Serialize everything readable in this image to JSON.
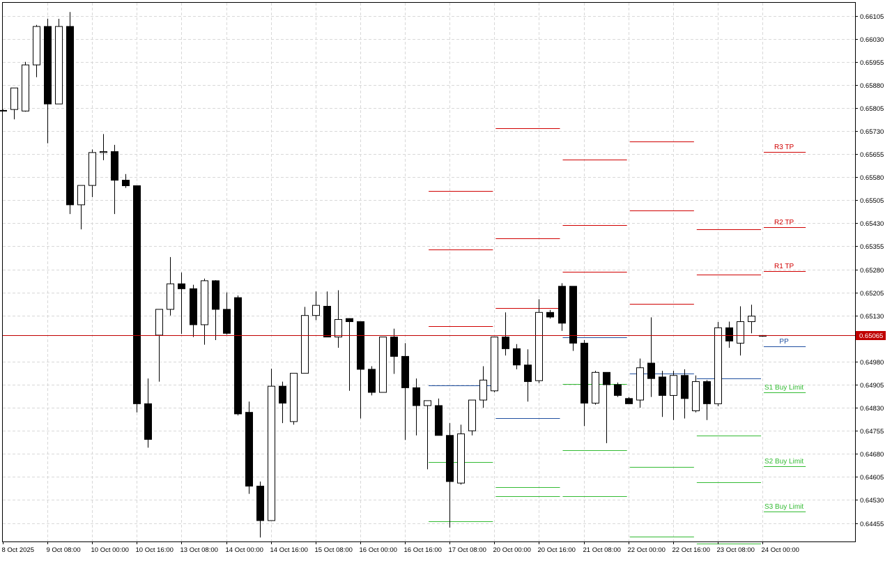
{
  "chart_data": {
    "type": "candlestick",
    "y_ticks": [
      "0.66105",
      "0.66030",
      "0.65955",
      "0.65880",
      "0.65805",
      "0.65730",
      "0.65655",
      "0.65580",
      "0.65505",
      "0.65430",
      "0.65355",
      "0.65280",
      "0.65205",
      "0.65130",
      "0.64980",
      "0.64905",
      "0.64830",
      "0.64755",
      "0.64680",
      "0.64605",
      "0.64530",
      "0.64455"
    ],
    "ylim": [
      0.64395,
      0.66147
    ],
    "x_labels": [
      {
        "i": 0,
        "text": "8 Oct 2025"
      },
      {
        "i": 4,
        "text": "9 Oct 08:00"
      },
      {
        "i": 8,
        "text": "10 Oct 00:00"
      },
      {
        "i": 12,
        "text": "10 Oct 16:00"
      },
      {
        "i": 16,
        "text": "13 Oct 08:00"
      },
      {
        "i": 20,
        "text": "14 Oct 00:00"
      },
      {
        "i": 24,
        "text": "14 Oct 16:00"
      },
      {
        "i": 28,
        "text": "15 Oct 08:00"
      },
      {
        "i": 32,
        "text": "16 Oct 00:00"
      },
      {
        "i": 36,
        "text": "16 Oct 16:00"
      },
      {
        "i": 40,
        "text": "17 Oct 08:00"
      },
      {
        "i": 44,
        "text": "20 Oct 00:00"
      },
      {
        "i": 48,
        "text": "20 Oct 16:00"
      },
      {
        "i": 52,
        "text": "21 Oct 08:00"
      },
      {
        "i": 56,
        "text": "22 Oct 00:00"
      },
      {
        "i": 60,
        "text": "22 Oct 16:00"
      },
      {
        "i": 64,
        "text": "23 Oct 08:00"
      },
      {
        "i": 68,
        "text": "24 Oct 00:00"
      }
    ],
    "candles": [
      {
        "o": 0.65797,
        "h": 0.658,
        "l": 0.65795,
        "c": 0.65795
      },
      {
        "o": 0.658,
        "h": 0.65865,
        "l": 0.65768,
        "c": 0.6587
      },
      {
        "o": 0.65795,
        "h": 0.65955,
        "l": 0.65793,
        "c": 0.65945
      },
      {
        "o": 0.65945,
        "h": 0.66075,
        "l": 0.65905,
        "c": 0.6607
      },
      {
        "o": 0.6607,
        "h": 0.66095,
        "l": 0.6569,
        "c": 0.65818
      },
      {
        "o": 0.65818,
        "h": 0.66095,
        "l": 0.65818,
        "c": 0.6607
      },
      {
        "o": 0.6607,
        "h": 0.66117,
        "l": 0.6546,
        "c": 0.6549
      },
      {
        "o": 0.6549,
        "h": 0.65542,
        "l": 0.6541,
        "c": 0.65553
      },
      {
        "o": 0.65553,
        "h": 0.6567,
        "l": 0.65515,
        "c": 0.6566
      },
      {
        "o": 0.6566,
        "h": 0.6572,
        "l": 0.65635,
        "c": 0.65663
      },
      {
        "o": 0.65663,
        "h": 0.65685,
        "l": 0.6546,
        "c": 0.6557
      },
      {
        "o": 0.6557,
        "h": 0.6559,
        "l": 0.65545,
        "c": 0.65552
      },
      {
        "o": 0.65552,
        "h": 0.65552,
        "l": 0.64815,
        "c": 0.64843
      },
      {
        "o": 0.64843,
        "h": 0.64925,
        "l": 0.647,
        "c": 0.64727
      },
      {
        "o": 0.65066,
        "h": 0.65143,
        "l": 0.64915,
        "c": 0.6515
      },
      {
        "o": 0.6515,
        "h": 0.6532,
        "l": 0.6513,
        "c": 0.65233
      },
      {
        "o": 0.65233,
        "h": 0.6527,
        "l": 0.6507,
        "c": 0.65217
      },
      {
        "o": 0.65217,
        "h": 0.6523,
        "l": 0.6506,
        "c": 0.651
      },
      {
        "o": 0.651,
        "h": 0.6525,
        "l": 0.65035,
        "c": 0.65243
      },
      {
        "o": 0.65243,
        "h": 0.65245,
        "l": 0.6505,
        "c": 0.6515
      },
      {
        "o": 0.6515,
        "h": 0.65205,
        "l": 0.65068,
        "c": 0.65072
      },
      {
        "o": 0.65188,
        "h": 0.65195,
        "l": 0.64805,
        "c": 0.6481
      },
      {
        "o": 0.64815,
        "h": 0.6485,
        "l": 0.6455,
        "c": 0.64575
      },
      {
        "o": 0.64575,
        "h": 0.6459,
        "l": 0.64408,
        "c": 0.64463
      },
      {
        "o": 0.64463,
        "h": 0.64957,
        "l": 0.64463,
        "c": 0.649
      },
      {
        "o": 0.649,
        "h": 0.64915,
        "l": 0.6478,
        "c": 0.64845
      },
      {
        "o": 0.64785,
        "h": 0.6493,
        "l": 0.64775,
        "c": 0.64942
      },
      {
        "o": 0.64942,
        "h": 0.65158,
        "l": 0.64942,
        "c": 0.6513
      },
      {
        "o": 0.6513,
        "h": 0.65208,
        "l": 0.65115,
        "c": 0.65163
      },
      {
        "o": 0.6516,
        "h": 0.65208,
        "l": 0.6506,
        "c": 0.6506
      },
      {
        "o": 0.6506,
        "h": 0.65212,
        "l": 0.65025,
        "c": 0.65117
      },
      {
        "o": 0.6512,
        "h": 0.65121,
        "l": 0.64885,
        "c": 0.6511
      },
      {
        "o": 0.6511,
        "h": 0.6511,
        "l": 0.64795,
        "c": 0.64955
      },
      {
        "o": 0.64955,
        "h": 0.64965,
        "l": 0.6487,
        "c": 0.6488
      },
      {
        "o": 0.6488,
        "h": 0.6506,
        "l": 0.64885,
        "c": 0.6506
      },
      {
        "o": 0.6506,
        "h": 0.65087,
        "l": 0.6494,
        "c": 0.64997
      },
      {
        "o": 0.64997,
        "h": 0.6504,
        "l": 0.64725,
        "c": 0.64895
      },
      {
        "o": 0.64895,
        "h": 0.64925,
        "l": 0.6474,
        "c": 0.64837
      },
      {
        "o": 0.64837,
        "h": 0.6484,
        "l": 0.6463,
        "c": 0.64853
      },
      {
        "o": 0.64837,
        "h": 0.6486,
        "l": 0.6474,
        "c": 0.6474
      },
      {
        "o": 0.6474,
        "h": 0.6478,
        "l": 0.6444,
        "c": 0.6459
      },
      {
        "o": 0.64585,
        "h": 0.64775,
        "l": 0.6458,
        "c": 0.64745
      },
      {
        "o": 0.64755,
        "h": 0.6485,
        "l": 0.6474,
        "c": 0.64855
      },
      {
        "o": 0.64855,
        "h": 0.64965,
        "l": 0.6483,
        "c": 0.6492
      },
      {
        "o": 0.64885,
        "h": 0.6506,
        "l": 0.6488,
        "c": 0.6506
      },
      {
        "o": 0.6506,
        "h": 0.6514,
        "l": 0.65,
        "c": 0.65022
      },
      {
        "o": 0.65022,
        "h": 0.65037,
        "l": 0.64955,
        "c": 0.64969
      },
      {
        "o": 0.64969,
        "h": 0.6502,
        "l": 0.6485,
        "c": 0.64915
      },
      {
        "o": 0.64918,
        "h": 0.65183,
        "l": 0.6491,
        "c": 0.6514
      },
      {
        "o": 0.6514,
        "h": 0.65148,
        "l": 0.6512,
        "c": 0.65125
      },
      {
        "o": 0.65225,
        "h": 0.65235,
        "l": 0.6508,
        "c": 0.65105
      },
      {
        "o": 0.65225,
        "h": 0.65225,
        "l": 0.65015,
        "c": 0.6504
      },
      {
        "o": 0.6504,
        "h": 0.6505,
        "l": 0.6477,
        "c": 0.64845
      },
      {
        "o": 0.64845,
        "h": 0.6495,
        "l": 0.6484,
        "c": 0.64945
      },
      {
        "o": 0.64945,
        "h": 0.64945,
        "l": 0.64715,
        "c": 0.64905
      },
      {
        "o": 0.64905,
        "h": 0.64912,
        "l": 0.64865,
        "c": 0.6487
      },
      {
        "o": 0.6486,
        "h": 0.64865,
        "l": 0.64843,
        "c": 0.64843
      },
      {
        "o": 0.64855,
        "h": 0.6499,
        "l": 0.6483,
        "c": 0.6496
      },
      {
        "o": 0.64975,
        "h": 0.65124,
        "l": 0.64865,
        "c": 0.64925
      },
      {
        "o": 0.6493,
        "h": 0.6495,
        "l": 0.648,
        "c": 0.6487
      },
      {
        "o": 0.6487,
        "h": 0.6495,
        "l": 0.6479,
        "c": 0.64935
      },
      {
        "o": 0.64935,
        "h": 0.64955,
        "l": 0.64795,
        "c": 0.6486
      },
      {
        "o": 0.6482,
        "h": 0.64935,
        "l": 0.64815,
        "c": 0.64915
      },
      {
        "o": 0.64915,
        "h": 0.6492,
        "l": 0.6479,
        "c": 0.64843
      },
      {
        "o": 0.64843,
        "h": 0.65109,
        "l": 0.64835,
        "c": 0.6509
      },
      {
        "o": 0.6509,
        "h": 0.6511,
        "l": 0.65025,
        "c": 0.65047
      },
      {
        "o": 0.6504,
        "h": 0.6516,
        "l": 0.65,
        "c": 0.6511
      },
      {
        "o": 0.6511,
        "h": 0.65165,
        "l": 0.65072,
        "c": 0.65128
      },
      {
        "o": 0.65065,
        "h": 0.65065,
        "l": 0.65061,
        "c": 0.65063
      }
    ],
    "current_price": {
      "value": 0.65065,
      "label": "0.65065",
      "color": "#c00000"
    },
    "pivot_segments": [
      {
        "from": 38,
        "to": 44,
        "r3": 0.65536,
        "r2": 0.65344,
        "r1": 0.65095,
        "pp": 0.64902,
        "s1": 0.64653,
        "s2": 0.6446
      },
      {
        "from": 44,
        "to": 50,
        "r3": 0.6574,
        "r2": 0.6538,
        "r1": 0.65155,
        "pp": 0.64797,
        "s1": 0.64572,
        "s2": 0.64543
      },
      {
        "from": 50,
        "to": 56,
        "r3": 0.65637,
        "r2": 0.65423,
        "r1": 0.65272,
        "pp": 0.65058,
        "s1": 0.64907,
        "s2": 0.64693,
        "s3": 0.64542
      },
      {
        "from": 56,
        "to": 62,
        "r3": 0.65697,
        "r2": 0.65471,
        "r1": 0.65167,
        "pp": 0.64941,
        "s1": 0.64637,
        "s2": 0.64411
      },
      {
        "from": 62,
        "to": 68,
        "r3": 0.65411,
        "r2": 0.65411,
        "r1": 0.65262,
        "pp": 0.64925,
        "s1": 0.6474,
        "s2": 0.64588,
        "s3": 0.64388
      },
      {
        "from": 68,
        "to": 72,
        "r3": 0.65663,
        "r2": 0.65418,
        "r1": 0.65274,
        "pp": 0.65029,
        "s1": 0.6488,
        "s2": 0.6464,
        "s3": 0.64493
      }
    ],
    "level_labels": {
      "r3": "R3 TP",
      "r2": "R2 TP",
      "r1": "R1 TP",
      "pp": "PP",
      "s1": "S1 Buy Limit",
      "s2": "S2 Buy Limit",
      "s3": "S3 Buy Limit"
    },
    "colors": {
      "resistance": "#d00000",
      "pivot": "#1f4fa0",
      "support": "#33bb33",
      "bull_body": "#ffffff",
      "bear_body": "#000000",
      "grid": "#d8d8d8",
      "axis_text": "#000000"
    },
    "grid": true
  }
}
